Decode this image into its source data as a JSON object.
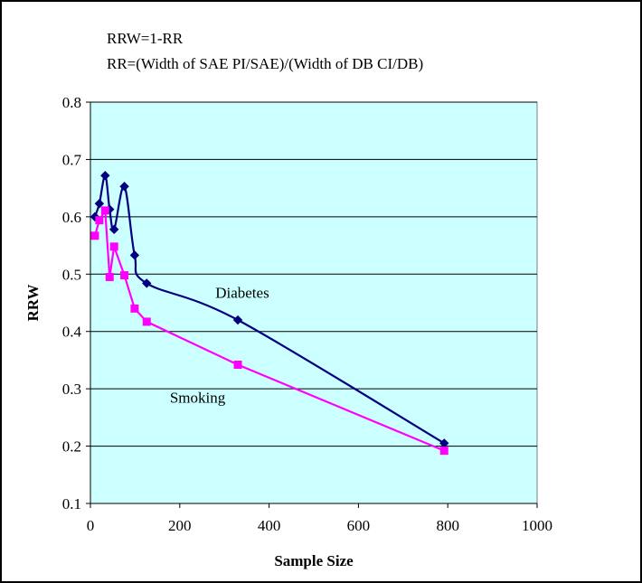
{
  "chart_data": {
    "type": "line",
    "notes": [
      "RRW=1-RR",
      "RR=(Width of SAE PI/SAE)/(Width of DB CI/DB)"
    ],
    "xlabel": "Sample Size",
    "ylabel": "RRW",
    "xlim": [
      0,
      1000
    ],
    "ylim": [
      0.1,
      0.8
    ],
    "xticks": [
      0,
      200,
      400,
      600,
      800,
      1000
    ],
    "yticks": [
      0.1,
      0.2,
      0.3,
      0.4,
      0.5,
      0.6,
      0.7,
      0.8
    ],
    "grid": "horizontal",
    "plot_background": "#ccffff",
    "series": [
      {
        "name": "Diabetes",
        "color": "#000080",
        "marker": "diamond",
        "smooth": true,
        "x": [
          10,
          20,
          33,
          43,
          53,
          76,
          99,
          126,
          330,
          792
        ],
        "y": [
          0.6,
          0.623,
          0.672,
          0.613,
          0.578,
          0.653,
          0.533,
          0.484,
          0.42,
          0.205
        ]
      },
      {
        "name": "Smoking",
        "color": "#ff00ff",
        "marker": "square",
        "smooth": false,
        "x": [
          10,
          20,
          33,
          43,
          53,
          76,
          99,
          126,
          330,
          792
        ],
        "y": [
          0.567,
          0.594,
          0.611,
          0.495,
          0.548,
          0.498,
          0.44,
          0.417,
          0.342,
          0.192
        ]
      }
    ]
  }
}
